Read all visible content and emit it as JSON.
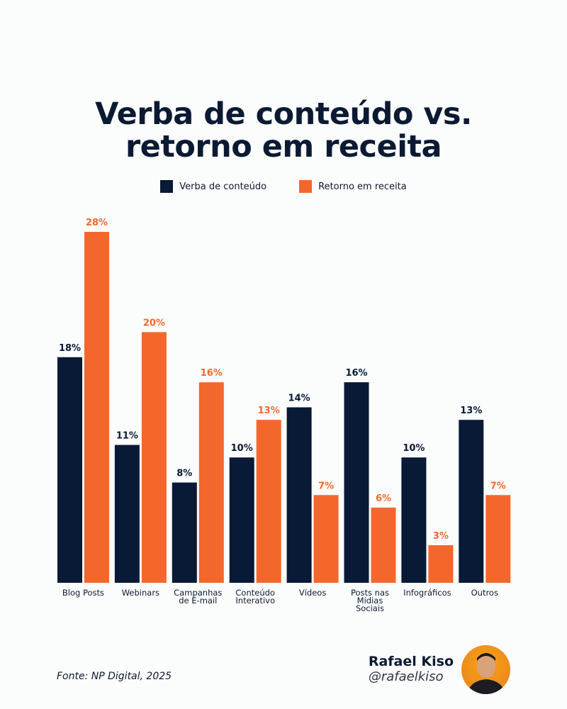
{
  "chart_data": {
    "type": "bar",
    "title": "Verba de conteúdo vs. retorno em receita",
    "title_lines": [
      "Verba de conteúdo vs.",
      "retorno em receita"
    ],
    "categories": [
      [
        "Blog Posts"
      ],
      [
        "Webinars"
      ],
      [
        "Campanhas",
        "de E-mail"
      ],
      [
        "Conteúdo",
        "Interativo"
      ],
      [
        "Vídeos"
      ],
      [
        "Posts nas",
        "Mídias",
        "Sociais"
      ],
      [
        "Infográficos"
      ],
      [
        "Outros"
      ]
    ],
    "series": [
      {
        "name": "Verba de conteúdo",
        "color": "#081a35",
        "values": [
          18,
          11,
          8,
          10,
          14,
          16,
          10,
          13
        ]
      },
      {
        "name": "Retorno em receita",
        "color": "#f4672c",
        "values": [
          28,
          20,
          16,
          13,
          7,
          6,
          3,
          7
        ]
      }
    ],
    "value_suffix": "%",
    "ylim": [
      0,
      28
    ],
    "grid": false,
    "legend_position": "top-center"
  },
  "source": "Fonte: NP Digital, 2025",
  "author": {
    "name": "Rafael Kiso",
    "handle": "@rafaelkiso"
  }
}
